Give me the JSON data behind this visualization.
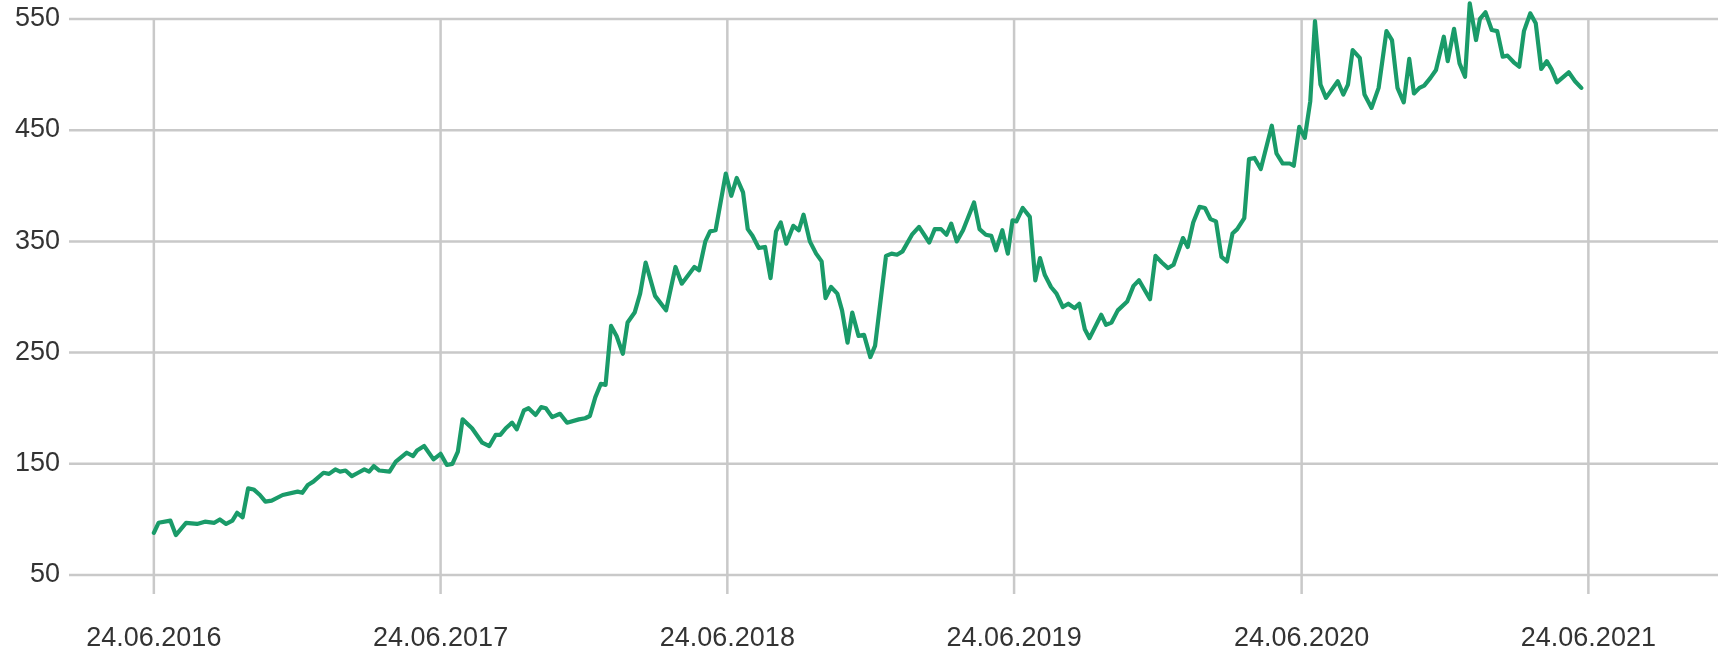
{
  "chart_data": {
    "type": "line",
    "x": [
      "2016-06-24",
      "2016-06-30",
      "2016-07-15",
      "2016-07-22",
      "2016-08-04",
      "2016-08-18",
      "2016-08-28",
      "2016-09-09",
      "2016-09-16",
      "2016-09-24",
      "2016-10-02",
      "2016-10-08",
      "2016-10-15",
      "2016-10-22",
      "2016-10-29",
      "2016-11-06",
      "2016-11-13",
      "2016-11-21",
      "2016-12-05",
      "2016-12-24",
      "2016-12-30",
      "2017-01-06",
      "2017-01-13",
      "2017-01-26",
      "2017-02-02",
      "2017-02-10",
      "2017-02-16",
      "2017-02-23",
      "2017-03-03",
      "2017-03-11",
      "2017-03-19",
      "2017-03-25",
      "2017-03-31",
      "2017-04-07",
      "2017-04-20",
      "2017-04-28",
      "2017-05-12",
      "2017-05-20",
      "2017-05-25",
      "2017-06-03",
      "2017-06-15",
      "2017-06-24",
      "2017-07-02",
      "2017-07-09",
      "2017-07-16",
      "2017-07-22",
      "2017-08-03",
      "2017-08-16",
      "2017-08-25",
      "2017-09-02",
      "2017-09-08",
      "2017-09-15",
      "2017-09-23",
      "2017-09-29",
      "2017-10-08",
      "2017-10-14",
      "2017-10-23",
      "2017-10-30",
      "2017-11-05",
      "2017-11-13",
      "2017-11-23",
      "2017-12-02",
      "2017-12-17",
      "2017-12-25",
      "2017-12-31",
      "2018-01-07",
      "2018-01-14",
      "2018-01-20",
      "2018-01-27",
      "2018-02-03",
      "2018-02-11",
      "2018-02-17",
      "2018-02-26",
      "2018-03-05",
      "2018-03-12",
      "2018-03-24",
      "2018-04-07",
      "2018-04-19",
      "2018-04-27",
      "2018-05-13",
      "2018-05-19",
      "2018-05-27",
      "2018-06-02",
      "2018-06-09",
      "2018-06-22",
      "2018-06-29",
      "2018-07-06",
      "2018-07-14",
      "2018-07-20",
      "2018-07-26",
      "2018-08-03",
      "2018-08-11",
      "2018-08-18",
      "2018-08-25",
      "2018-08-31",
      "2018-09-07",
      "2018-09-16",
      "2018-09-23",
      "2018-09-29",
      "2018-10-07",
      "2018-10-15",
      "2018-10-22",
      "2018-10-27",
      "2018-11-03",
      "2018-11-11",
      "2018-11-17",
      "2018-11-24",
      "2018-11-30",
      "2018-12-08",
      "2018-12-15",
      "2018-12-23",
      "2018-12-29",
      "2019-01-12",
      "2019-01-19",
      "2019-01-26",
      "2019-02-02",
      "2019-02-14",
      "2019-02-23",
      "2019-03-08",
      "2019-03-15",
      "2019-03-23",
      "2019-03-30",
      "2019-04-05",
      "2019-04-12",
      "2019-04-20",
      "2019-05-04",
      "2019-05-11",
      "2019-05-19",
      "2019-05-26",
      "2019-06-01",
      "2019-06-09",
      "2019-06-16",
      "2019-06-22",
      "2019-06-27",
      "2019-07-05",
      "2019-07-14",
      "2019-07-21",
      "2019-07-27",
      "2019-08-02",
      "2019-08-10",
      "2019-08-17",
      "2019-08-25",
      "2019-09-01",
      "2019-09-09",
      "2019-09-15",
      "2019-09-22",
      "2019-09-28",
      "2019-10-13",
      "2019-10-19",
      "2019-10-26",
      "2019-11-03",
      "2019-11-15",
      "2019-11-23",
      "2019-11-30",
      "2019-12-14",
      "2019-12-21",
      "2019-12-29",
      "2020-01-06",
      "2020-01-13",
      "2020-01-25",
      "2020-01-31",
      "2020-02-07",
      "2020-02-15",
      "2020-02-22",
      "2020-02-29",
      "2020-03-07",
      "2020-03-14",
      "2020-03-21",
      "2020-03-28",
      "2020-04-03",
      "2020-04-12",
      "2020-04-18",
      "2020-04-25",
      "2020-05-03",
      "2020-05-17",
      "2020-05-23",
      "2020-05-31",
      "2020-06-09",
      "2020-06-14",
      "2020-06-21",
      "2020-06-28",
      "2020-07-05",
      "2020-07-11",
      "2020-07-18",
      "2020-07-25",
      "2020-08-09",
      "2020-08-16",
      "2020-08-22",
      "2020-08-28",
      "2020-09-06",
      "2020-09-12",
      "2020-09-21",
      "2020-09-30",
      "2020-10-10",
      "2020-10-17",
      "2020-10-24",
      "2020-11-01",
      "2020-11-08",
      "2020-11-14",
      "2020-11-21",
      "2020-11-27",
      "2020-12-05",
      "2020-12-12",
      "2020-12-22",
      "2020-12-27",
      "2021-01-04",
      "2021-01-11",
      "2021-01-18",
      "2021-01-24",
      "2021-02-01",
      "2021-02-06",
      "2021-02-13",
      "2021-02-21",
      "2021-02-28",
      "2021-03-07",
      "2021-03-13",
      "2021-03-21",
      "2021-03-28",
      "2021-04-03",
      "2021-04-11",
      "2021-04-18",
      "2021-04-25",
      "2021-05-02",
      "2021-05-08",
      "2021-05-15",
      "2021-05-30",
      "2021-06-07",
      "2021-06-15"
    ],
    "series": [
      {
        "color": "#1a9b69",
        "values": [
          88,
          97,
          99,
          86,
          97,
          96,
          98,
          97,
          100,
          96,
          99,
          106,
          102,
          128,
          127,
          122,
          116,
          117,
          122,
          125,
          124,
          131,
          134,
          142,
          141,
          145,
          143,
          144,
          139,
          142,
          145,
          143,
          148,
          144,
          143,
          152,
          160,
          157,
          162,
          166,
          154,
          159,
          149,
          150,
          161,
          190,
          182,
          169,
          166,
          176,
          176,
          182,
          187,
          181,
          198,
          200,
          194,
          201,
          200,
          192,
          195,
          187,
          190,
          191,
          193,
          210,
          222,
          221,
          274,
          265,
          249,
          277,
          286,
          303,
          331,
          301,
          288,
          327,
          312,
          327,
          324,
          350,
          359,
          360,
          411,
          391,
          407,
          394,
          361,
          355,
          344,
          345,
          317,
          359,
          367,
          348,
          364,
          360,
          374,
          350,
          339,
          332,
          299,
          309,
          303,
          288,
          259,
          286,
          265,
          266,
          246,
          256,
          337,
          339,
          338,
          341,
          356,
          363,
          349,
          361,
          361,
          356,
          366,
          350,
          360,
          385,
          361,
          356,
          355,
          342,
          360,
          339,
          369,
          368,
          380,
          372,
          315,
          335,
          320,
          309,
          303,
          291,
          294,
          290,
          294,
          271,
          263,
          284,
          275,
          277,
          288,
          296,
          310,
          315,
          298,
          337,
          331,
          326,
          329,
          353,
          345,
          367,
          381,
          380,
          370,
          368,
          336,
          332,
          357,
          361,
          371,
          424,
          425,
          415,
          454,
          429,
          420,
          420,
          418,
          453,
          443,
          476,
          548,
          491,
          479,
          494,
          482,
          491,
          522,
          515,
          482,
          470,
          488,
          539,
          531,
          488,
          475,
          514,
          483,
          488,
          490,
          497,
          504,
          534,
          512,
          541,
          510,
          498,
          564,
          531,
          550,
          556,
          540,
          539,
          516,
          517,
          511,
          507,
          539,
          555,
          546,
          505,
          512,
          505,
          493,
          502,
          494,
          488
        ]
      }
    ],
    "xlim": [
      "2016-03-08",
      "2021-12-06"
    ],
    "xticks": [
      {
        "value": "2016-06-24",
        "label": "24.06.2016"
      },
      {
        "value": "2017-06-24",
        "label": "24.06.2017"
      },
      {
        "value": "2018-06-24",
        "label": "24.06.2018"
      },
      {
        "value": "2019-06-24",
        "label": "24.06.2019"
      },
      {
        "value": "2020-06-24",
        "label": "24.06.2020"
      },
      {
        "value": "2021-06-24",
        "label": "24.06.2021"
      }
    ],
    "ylim": [
      33,
      567
    ],
    "yticks": [
      50,
      150,
      250,
      350,
      450,
      550
    ],
    "grid": true,
    "line_style": "solid",
    "marker": "none"
  }
}
